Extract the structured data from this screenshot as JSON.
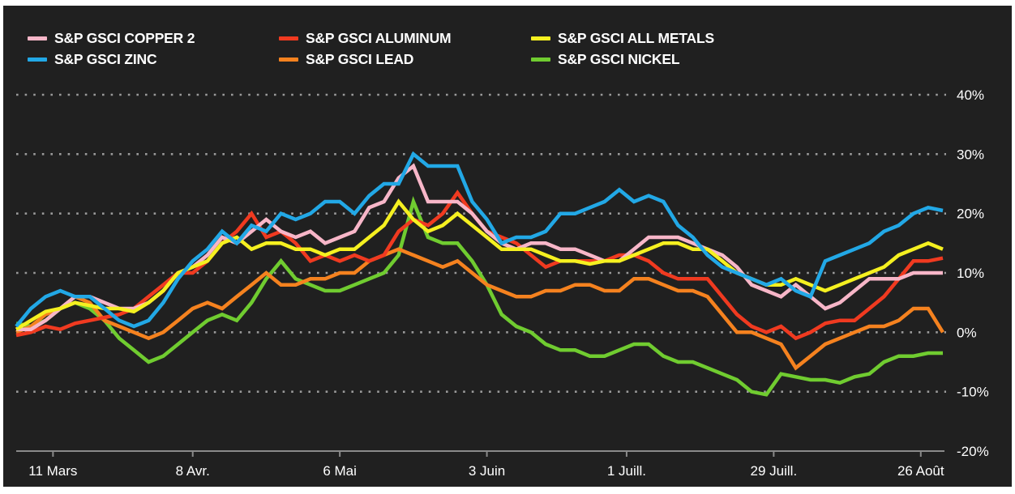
{
  "chart_data": {
    "type": "line",
    "title": "",
    "xlabel": "",
    "ylabel": "",
    "ylim": [
      -20,
      40
    ],
    "y_ticks": [
      40,
      30,
      20,
      10,
      0,
      -10,
      -20
    ],
    "y_tick_labels": [
      "40%",
      "30%",
      "20%",
      "10%",
      "0%",
      "-10%",
      "-20%"
    ],
    "y_axis_position": "right",
    "grid": "dotted horizontal",
    "x_ticks": [
      {
        "index": 2.5,
        "label": "11 Mars"
      },
      {
        "index": 12,
        "label": "8 Avr."
      },
      {
        "index": 22,
        "label": "6 Mai"
      },
      {
        "index": 32,
        "label": "3 Juin"
      },
      {
        "index": 41.5,
        "label": "1 Juill."
      },
      {
        "index": 51.5,
        "label": "29 Juill."
      },
      {
        "index": 61.5,
        "label": "26 Août"
      }
    ],
    "x_count": 64,
    "legend_position": "top",
    "series": [
      {
        "name": "S&P GSCI COPPER 2",
        "color": "#f7b6c8",
        "values": [
          0.5,
          0.5,
          2,
          4,
          6,
          6,
          5,
          4,
          4,
          5,
          7,
          10,
          11,
          13,
          16,
          15,
          17,
          19,
          17,
          16,
          17,
          15,
          16,
          17,
          21,
          22,
          26,
          28,
          22,
          22,
          22,
          20,
          17,
          15,
          14,
          15,
          15,
          14,
          14,
          13,
          12,
          12,
          14,
          16,
          16,
          16,
          15,
          14,
          13,
          11,
          8,
          7,
          6,
          8,
          6,
          4,
          5,
          7,
          9,
          9,
          9,
          10,
          10,
          10
        ]
      },
      {
        "name": "S&P GSCI ALUMINUM",
        "color": "#f03a20",
        "values": [
          -0.5,
          0,
          1,
          0.5,
          1.5,
          2,
          2.5,
          3,
          4,
          6,
          8,
          10,
          10,
          12,
          15,
          17,
          20,
          16,
          17,
          15,
          12,
          13,
          12,
          13,
          12,
          13,
          17,
          19,
          18,
          20,
          23.5,
          20,
          17,
          16,
          15,
          13,
          11,
          12,
          12,
          12,
          12,
          13,
          13,
          12,
          10,
          9,
          9,
          9,
          6,
          3,
          1,
          0,
          1,
          -1,
          0,
          1.5,
          2,
          2,
          4,
          6,
          9,
          12,
          12,
          12.5
        ]
      },
      {
        "name": "S&P GSCI ALL METALS",
        "color": "#f5f020",
        "values": [
          0.5,
          2,
          3.5,
          4,
          5,
          4.5,
          4,
          4,
          3.5,
          5,
          7,
          10,
          11,
          12,
          15,
          16,
          14,
          15,
          15,
          14,
          14,
          13,
          14,
          14,
          16,
          18,
          22,
          19,
          17,
          18,
          20,
          18,
          16,
          14,
          14,
          14,
          13,
          12,
          12,
          11.5,
          12,
          12,
          13,
          14,
          15,
          15,
          14,
          14,
          12,
          10,
          9,
          8,
          8,
          9,
          8,
          7,
          8,
          9,
          10,
          11,
          13,
          14,
          15,
          14
        ]
      },
      {
        "name": "S&P GSCI ZINC",
        "color": "#22a8e6",
        "values": [
          1,
          4,
          6,
          7,
          6,
          6,
          4,
          2,
          1,
          2,
          5,
          9,
          12,
          14,
          17,
          15,
          18,
          17,
          20,
          19,
          20,
          22,
          22,
          20,
          23,
          25,
          25,
          30,
          28,
          28,
          28,
          22,
          19,
          15,
          16,
          16,
          17,
          20,
          20,
          21,
          22,
          24,
          22,
          23,
          22,
          18,
          16,
          13,
          11,
          10,
          9,
          8,
          9,
          7,
          6,
          12,
          13,
          14,
          15,
          17,
          18,
          20,
          21,
          20.5
        ]
      },
      {
        "name": "S&P GSCI LEAD",
        "color": "#f5821f",
        "values": [
          0,
          1,
          3,
          4,
          6,
          5,
          2,
          1,
          0,
          -1,
          0,
          2,
          4,
          5,
          4,
          6,
          8,
          10,
          8,
          8,
          9,
          9,
          10,
          10,
          12,
          13,
          14,
          13,
          12,
          11,
          12,
          10,
          8,
          7,
          6,
          6,
          7,
          7,
          8,
          8,
          7,
          7,
          9,
          9,
          8,
          7,
          7,
          6,
          3,
          0,
          0,
          -1,
          -2,
          -6,
          -4,
          -2,
          -1,
          0,
          1,
          1,
          2,
          4,
          4,
          0
        ]
      },
      {
        "name": "S&P GSCI NICKEL",
        "color": "#70cc30",
        "values": [
          1.5,
          1,
          2,
          4,
          5,
          4,
          2,
          -1,
          -3,
          -5,
          -4,
          -2,
          0,
          2,
          3,
          2,
          5,
          9,
          12,
          9,
          8,
          7,
          7,
          8,
          9,
          10,
          13,
          22,
          16,
          15,
          15,
          12,
          8,
          3,
          1,
          0,
          -2,
          -3,
          -3,
          -4,
          -4,
          -3,
          -2,
          -2,
          -4,
          -5,
          -5,
          -6,
          -7,
          -8,
          -10,
          -10.5,
          -7,
          -7.5,
          -8,
          -8,
          -8.5,
          -7.5,
          -7,
          -5,
          -4,
          -4,
          -3.5,
          -3.5
        ]
      }
    ]
  }
}
